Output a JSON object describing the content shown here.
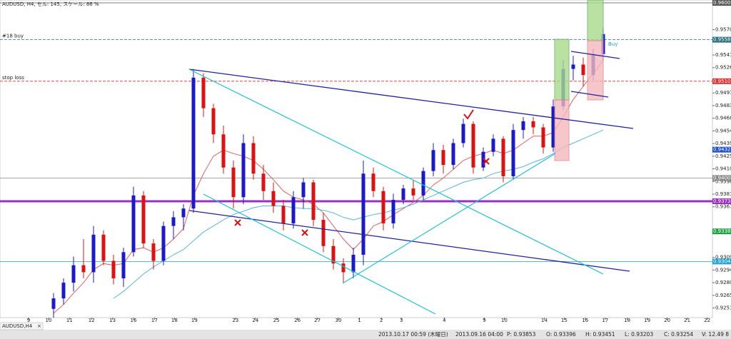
{
  "header": "AUDUSD, H4, セル: 145, スケール: 86 %",
  "tab": {
    "label": "AUDUSD,H4",
    "close": "×"
  },
  "status": [
    "2013.10.17 00:59 (木曜日)",
    "2013.09.16 04:00",
    "P: 0.93853",
    "O: 0.93396",
    "H: 0.93451",
    "L: 0.93203",
    "C: 0.93254",
    "V: 12.49 8"
  ],
  "chart_data": {
    "type": "candlestick",
    "up_color": "#1a1acc",
    "down_color": "#e01010",
    "open": [
      0.925,
      0.9262,
      0.928,
      0.93,
      0.9292,
      0.9335,
      0.9305,
      0.9285,
      0.9315,
      0.938,
      0.9325,
      0.9305,
      0.9345,
      0.9355,
      0.9365,
      0.9515,
      0.948,
      0.945,
      0.9412,
      0.9378,
      0.944,
      0.9405,
      0.9385,
      0.9368,
      0.9348,
      0.9378,
      0.9395,
      0.9352,
      0.9322,
      0.9302,
      0.9292,
      0.9312,
      0.9405,
      0.9385,
      0.9348,
      0.9375,
      0.9388,
      0.938,
      0.9408,
      0.9432,
      0.9415,
      0.944,
      0.9462,
      0.9412,
      0.943,
      0.9445,
      0.9402,
      0.9455,
      0.9465,
      0.9458,
      0.9435,
      0.9482,
      0.9525,
      0.953,
      0.9518,
      0.9542
    ],
    "high": [
      0.9268,
      0.9285,
      0.931,
      0.933,
      0.9345,
      0.934,
      0.9312,
      0.932,
      0.939,
      0.9385,
      0.933,
      0.935,
      0.9362,
      0.937,
      0.9525,
      0.952,
      0.9485,
      0.946,
      0.942,
      0.945,
      0.9448,
      0.9415,
      0.9395,
      0.9375,
      0.9385,
      0.94,
      0.9398,
      0.936,
      0.933,
      0.9308,
      0.932,
      0.942,
      0.9412,
      0.939,
      0.9382,
      0.9392,
      0.9398,
      0.9412,
      0.944,
      0.9438,
      0.9445,
      0.9468,
      0.9465,
      0.9435,
      0.945,
      0.9448,
      0.9462,
      0.947,
      0.947,
      0.9462,
      0.949,
      0.9535,
      0.954,
      0.9538,
      0.9548,
      0.9572
    ],
    "low": [
      0.924,
      0.9255,
      0.927,
      0.9285,
      0.928,
      0.93,
      0.9278,
      0.9275,
      0.931,
      0.932,
      0.9295,
      0.93,
      0.933,
      0.934,
      0.936,
      0.947,
      0.944,
      0.9405,
      0.9365,
      0.937,
      0.9398,
      0.9375,
      0.936,
      0.934,
      0.9342,
      0.9365,
      0.9345,
      0.9315,
      0.9295,
      0.928,
      0.9285,
      0.93,
      0.9378,
      0.934,
      0.9342,
      0.937,
      0.9375,
      0.9375,
      0.9402,
      0.9405,
      0.941,
      0.9435,
      0.9405,
      0.9408,
      0.9425,
      0.9395,
      0.9398,
      0.9445,
      0.945,
      0.9428,
      0.943,
      0.9478,
      0.9512,
      0.9505,
      0.9512,
      0.9535
    ],
    "close": [
      0.9262,
      0.928,
      0.93,
      0.9292,
      0.9335,
      0.9305,
      0.9285,
      0.9315,
      0.938,
      0.9325,
      0.9305,
      0.9345,
      0.9355,
      0.9365,
      0.9515,
      0.948,
      0.945,
      0.9412,
      0.9378,
      0.944,
      0.9405,
      0.9385,
      0.9368,
      0.9348,
      0.9378,
      0.9395,
      0.9352,
      0.9322,
      0.9302,
      0.9292,
      0.9312,
      0.9405,
      0.9385,
      0.9348,
      0.9375,
      0.9388,
      0.938,
      0.9408,
      0.9432,
      0.9415,
      0.944,
      0.9462,
      0.9412,
      0.943,
      0.9445,
      0.9402,
      0.9455,
      0.9465,
      0.9458,
      0.9435,
      0.9482,
      0.9525,
      0.953,
      0.9518,
      0.9542,
      0.9565
    ],
    "lines": [
      {
        "color": "#e06060",
        "values": [
          0.9245,
          0.9255,
          0.9268,
          0.928,
          0.9295,
          0.9302,
          0.93,
          0.9302,
          0.9318,
          0.932,
          0.9315,
          0.932,
          0.933,
          0.9342,
          0.938,
          0.9405,
          0.9425,
          0.9432,
          0.9428,
          0.9425,
          0.942,
          0.941,
          0.9398,
          0.9385,
          0.9378,
          0.9375,
          0.937,
          0.936,
          0.9345,
          0.933,
          0.9318,
          0.933,
          0.9345,
          0.935,
          0.9358,
          0.9365,
          0.9372,
          0.938,
          0.9392,
          0.94,
          0.941,
          0.942,
          0.9425,
          0.9428,
          0.9432,
          0.9428,
          0.9432,
          0.944,
          0.9448,
          0.9448,
          0.9452,
          0.947,
          0.949,
          0.9505,
          0.952,
          0.9535
        ]
      },
      {
        "color": "#5ab4e0",
        "values": [
          null,
          null,
          null,
          null,
          null,
          null,
          0.9262,
          0.927,
          0.928,
          0.929,
          0.9298,
          0.9305,
          0.9312,
          0.9318,
          0.9328,
          0.9338,
          0.9345,
          0.9352,
          0.9358,
          0.9362,
          0.9366,
          0.9368,
          0.9368,
          0.9368,
          0.9366,
          0.9365,
          0.9365,
          0.9363,
          0.936,
          0.9355,
          0.9352,
          0.9355,
          0.9358,
          0.936,
          0.9363,
          0.9366,
          0.937,
          0.9375,
          0.938,
          0.9385,
          0.939,
          0.9395,
          0.9398,
          0.94,
          0.9405,
          0.9408,
          0.941,
          0.9413,
          0.9418,
          0.9422,
          0.9428,
          0.9435,
          0.944,
          0.9445,
          0.945,
          0.9455
        ]
      }
    ],
    "xlim": [
      -5.357,
      65.93
    ],
    "xticks": [
      {
        "value": -2.5,
        "label": "9"
      },
      {
        "value": -0.5,
        "label": "10"
      },
      {
        "value": 1.6,
        "label": "11"
      },
      {
        "value": 3.8,
        "label": "12"
      },
      {
        "value": 5.9,
        "label": "13"
      },
      {
        "value": 8,
        "label": "16"
      },
      {
        "value": 10.1,
        "label": "17"
      },
      {
        "value": 12.1,
        "label": "18"
      },
      {
        "value": 14.1,
        "label": "19"
      },
      {
        "value": 18.2,
        "label": "23"
      },
      {
        "value": 20.2,
        "label": "24"
      },
      {
        "value": 22.3,
        "label": "25"
      },
      {
        "value": 24.4,
        "label": "26"
      },
      {
        "value": 26.4,
        "label": "27"
      },
      {
        "value": 28.5,
        "label": "30"
      },
      {
        "value": 30.6,
        "label": "1"
      },
      {
        "value": 32.8,
        "label": "2"
      },
      {
        "value": 34.8,
        "label": "3"
      },
      {
        "value": 39.1,
        "label": "4"
      },
      {
        "value": 43.1,
        "label": "9"
      },
      {
        "value": 45.1,
        "label": "10"
      },
      {
        "value": 49.1,
        "label": "14"
      },
      {
        "value": 51.1,
        "label": "15"
      },
      {
        "value": 53.2,
        "label": "16"
      },
      {
        "value": 55.2,
        "label": "17"
      },
      {
        "value": 57.4,
        "label": "18"
      },
      {
        "value": 59.4,
        "label": "19"
      },
      {
        "value": 61.4,
        "label": "20"
      },
      {
        "value": 63.4,
        "label": "21"
      },
      {
        "value": 65.4,
        "label": "22"
      }
    ],
    "ylim": [
      0.924,
      0.9604
    ],
    "yticks": [
      {
        "value": 0.957,
        "label": "0.95700"
      },
      {
        "value": 0.9541,
        "label": "0.95410"
      },
      {
        "value": 0.95265,
        "label": "0.95265"
      },
      {
        "value": 0.94975,
        "label": "0.94975"
      },
      {
        "value": 0.9483,
        "label": "0.94830"
      },
      {
        "value": 0.94685,
        "label": "0.94685"
      },
      {
        "value": 0.9454,
        "label": "0.94540"
      },
      {
        "value": 0.94395,
        "label": "0.94395"
      },
      {
        "value": 0.9425,
        "label": "0.94250"
      },
      {
        "value": 0.94105,
        "label": "0.94105"
      },
      {
        "value": 0.9396,
        "label": "0.93960"
      },
      {
        "value": 0.93815,
        "label": "0.93815"
      },
      {
        "value": 0.9367,
        "label": "0.93670"
      },
      {
        "value": 0.9309,
        "label": "0.93090"
      },
      {
        "value": 0.92945,
        "label": "0.92945"
      },
      {
        "value": 0.928,
        "label": "0.92800"
      },
      {
        "value": 0.92655,
        "label": "0.92655"
      },
      {
        "value": 0.9251,
        "label": "0.92510"
      }
    ],
    "levels": [
      {
        "value": 0.96007,
        "label": "0.96007",
        "color": "#555",
        "line": "solid"
      },
      {
        "value": 0.95585,
        "label": "0.95585",
        "color": "#2a6f7a",
        "line": "dashed",
        "name": "#18 buy"
      },
      {
        "value": 0.95109,
        "label": "0.95109",
        "color": "#e03030",
        "line": "dashed",
        "name": "stop loss"
      },
      {
        "value": 0.94325,
        "label": "0.94325",
        "color": "#2050c0"
      },
      {
        "value": 0.94,
        "label": "0.94000",
        "color": "#888",
        "line": "solid"
      },
      {
        "value": 0.93733,
        "label": "0.93733",
        "color": "#9a30c0",
        "line": "thick"
      },
      {
        "value": 0.93388,
        "label": "0.93388",
        "color": "#20a040"
      },
      {
        "value": 0.93043,
        "label": "0.93043",
        "color": "#20a0d0",
        "line": "solid"
      }
    ],
    "annotation": "Buy"
  }
}
